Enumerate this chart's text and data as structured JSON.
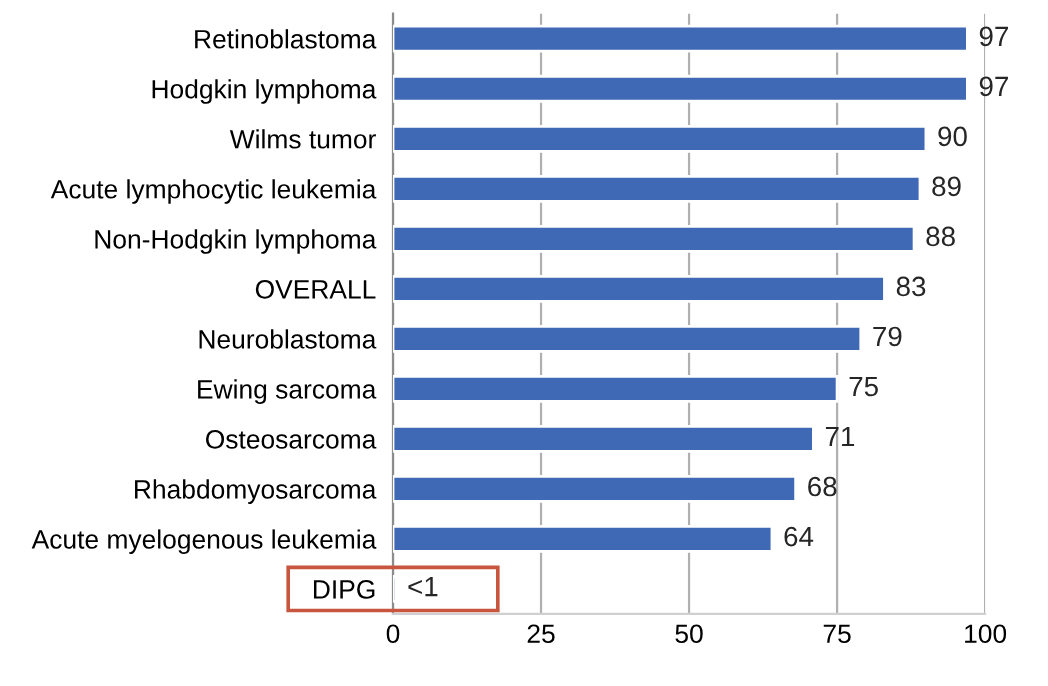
{
  "chart_data": {
    "type": "bar",
    "orientation": "horizontal",
    "categories": [
      "Retinoblastoma",
      "Hodgkin lymphoma",
      "Wilms tumor",
      "Acute lymphocytic leukemia",
      "Non-Hodgkin lymphoma",
      "OVERALL",
      "Neuroblastoma",
      "Ewing sarcoma",
      "Osteosarcoma",
      "Rhabdomyosarcoma",
      "Acute myelogenous leukemia",
      "DIPG"
    ],
    "values": [
      97,
      97,
      90,
      89,
      88,
      83,
      79,
      75,
      71,
      68,
      64,
      0.5
    ],
    "value_labels": [
      "97",
      "97",
      "90",
      "89",
      "88",
      "83",
      "79",
      "75",
      "71",
      "68",
      "64",
      "<1"
    ],
    "color": "#3f68b5",
    "xlim": [
      0,
      100
    ],
    "xticks": [
      0,
      25,
      50,
      75,
      100
    ],
    "grid": "x"
  }
}
